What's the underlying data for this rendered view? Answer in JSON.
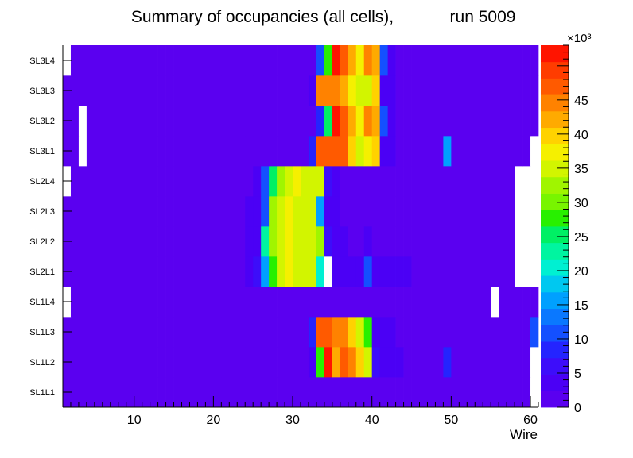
{
  "chart_data": {
    "type": "heatmap",
    "title": "Summary of occupancies (all cells),",
    "run_label": "run 5009",
    "xlabel": "Wire",
    "ylabel": "",
    "x_range": [
      1,
      61
    ],
    "x_ticks": [
      "10",
      "20",
      "30",
      "40",
      "50",
      "60"
    ],
    "y_categories": [
      "SL1L1",
      "SL1L2",
      "SL1L3",
      "SL1L4",
      "SL2L1",
      "SL2L2",
      "SL2L3",
      "SL2L4",
      "SL3L1",
      "SL3L2",
      "SL3L3",
      "SL3L4"
    ],
    "z_multiplier": "×10³",
    "z_max": 53,
    "z_ticks": [
      "0",
      "5",
      "10",
      "15",
      "20",
      "25",
      "30",
      "35",
      "40",
      "45"
    ],
    "zero_value_note": "cells with no hits are drawn white",
    "palette": [
      "#5a00f0",
      "#4b00f5",
      "#3d0dfa",
      "#2424ff",
      "#1450ff",
      "#0a78ff",
      "#00a0ff",
      "#00c8f0",
      "#00f0d2",
      "#00f5a0",
      "#00f064",
      "#28f000",
      "#78f500",
      "#a0f500",
      "#d2f500",
      "#f5f000",
      "#ffd200",
      "#ffaa00",
      "#ff8200",
      "#ff5a00",
      "#ff3c00",
      "#ff1400"
    ],
    "background_value": 0.5,
    "rows": {
      "SL3L4": {
        "values": {
          "1": 0,
          "31": 2,
          "32": 2,
          "33": 10,
          "34": 28,
          "35": 52,
          "36": 46,
          "37": 42,
          "38": 38,
          "39": 44,
          "40": 42,
          "41": 10,
          "42": 4
        }
      },
      "SL3L3": {
        "values": {
          "32": 3,
          "33": 44,
          "34": 44,
          "35": 44,
          "36": 42,
          "37": 38,
          "38": 36,
          "39": 34,
          "40": 40,
          "41": 4,
          "42": 4
        }
      },
      "SL3L2": {
        "values": {
          "3": 0,
          "31": 2,
          "32": 2,
          "33": 8,
          "34": 26,
          "35": 52,
          "36": 46,
          "37": 42,
          "38": 38,
          "39": 44,
          "40": 42,
          "41": 10,
          "42": 4
        }
      },
      "SL3L1": {
        "values": {
          "3": 0,
          "30": 2,
          "31": 2,
          "32": 8,
          "33": 47,
          "34": 47,
          "35": 47,
          "36": 46,
          "37": 40,
          "38": 36,
          "39": 38,
          "40": 40,
          "41": 3,
          "42": 3,
          "49": 16,
          "60": 0
        }
      },
      "SL2L4": {
        "values": {
          "1": 0,
          "25": 3,
          "26": 12,
          "27": 26,
          "28": 32,
          "29": 36,
          "30": 38,
          "31": 34,
          "32": 34,
          "33": 34,
          "34": 6,
          "35": 4,
          "58": 0,
          "59": 0,
          "60": 0
        }
      },
      "SL2L3": {
        "values": {
          "24": 3,
          "25": 3,
          "26": 12,
          "27": 32,
          "28": 36,
          "29": 38,
          "30": 36,
          "31": 34,
          "32": 34,
          "33": 16,
          "34": 3,
          "35": 4,
          "58": 0,
          "59": 0,
          "60": 0
        }
      },
      "SL2L2": {
        "values": {
          "24": 3,
          "25": 3,
          "26": 24,
          "27": 32,
          "28": 34,
          "29": 38,
          "30": 36,
          "31": 34,
          "32": 34,
          "33": 32,
          "34": 6,
          "35": 3,
          "36": 3,
          "39": 3,
          "58": 0,
          "59": 0,
          "60": 0
        }
      },
      "SL2L1": {
        "values": {
          "24": 3,
          "25": 6,
          "26": 16,
          "27": 28,
          "28": 36,
          "29": 38,
          "30": 36,
          "31": 34,
          "32": 34,
          "33": 20,
          "34": 0,
          "35": 3,
          "36": 3,
          "37": 3,
          "38": 3,
          "39": 12,
          "40": 3,
          "41": 3,
          "42": 3,
          "43": 3,
          "44": 3,
          "58": 0,
          "59": 0,
          "60": 0
        }
      },
      "SL1L4": {
        "values": {
          "1": 0,
          "55": 0
        }
      },
      "SL1L3": {
        "values": {
          "28": 2,
          "29": 2,
          "30": 2,
          "31": 2,
          "32": 8,
          "33": 47,
          "34": 47,
          "35": 44,
          "36": 44,
          "37": 40,
          "38": 36,
          "39": 28,
          "40": 3,
          "41": 3,
          "42": 3,
          "60": 12
        }
      },
      "SL1L2": {
        "values": {
          "29": 2,
          "30": 2,
          "31": 2,
          "32": 4,
          "33": 28,
          "34": 52,
          "35": 42,
          "36": 46,
          "37": 44,
          "38": 40,
          "39": 34,
          "40": 6,
          "41": 3,
          "42": 3,
          "43": 3,
          "49": 8,
          "60": 0
        }
      },
      "SL1L1": {
        "values": {
          "33": 2,
          "34": 2,
          "35": 2,
          "36": 2,
          "37": 2,
          "38": 2,
          "60": 0
        }
      }
    }
  }
}
